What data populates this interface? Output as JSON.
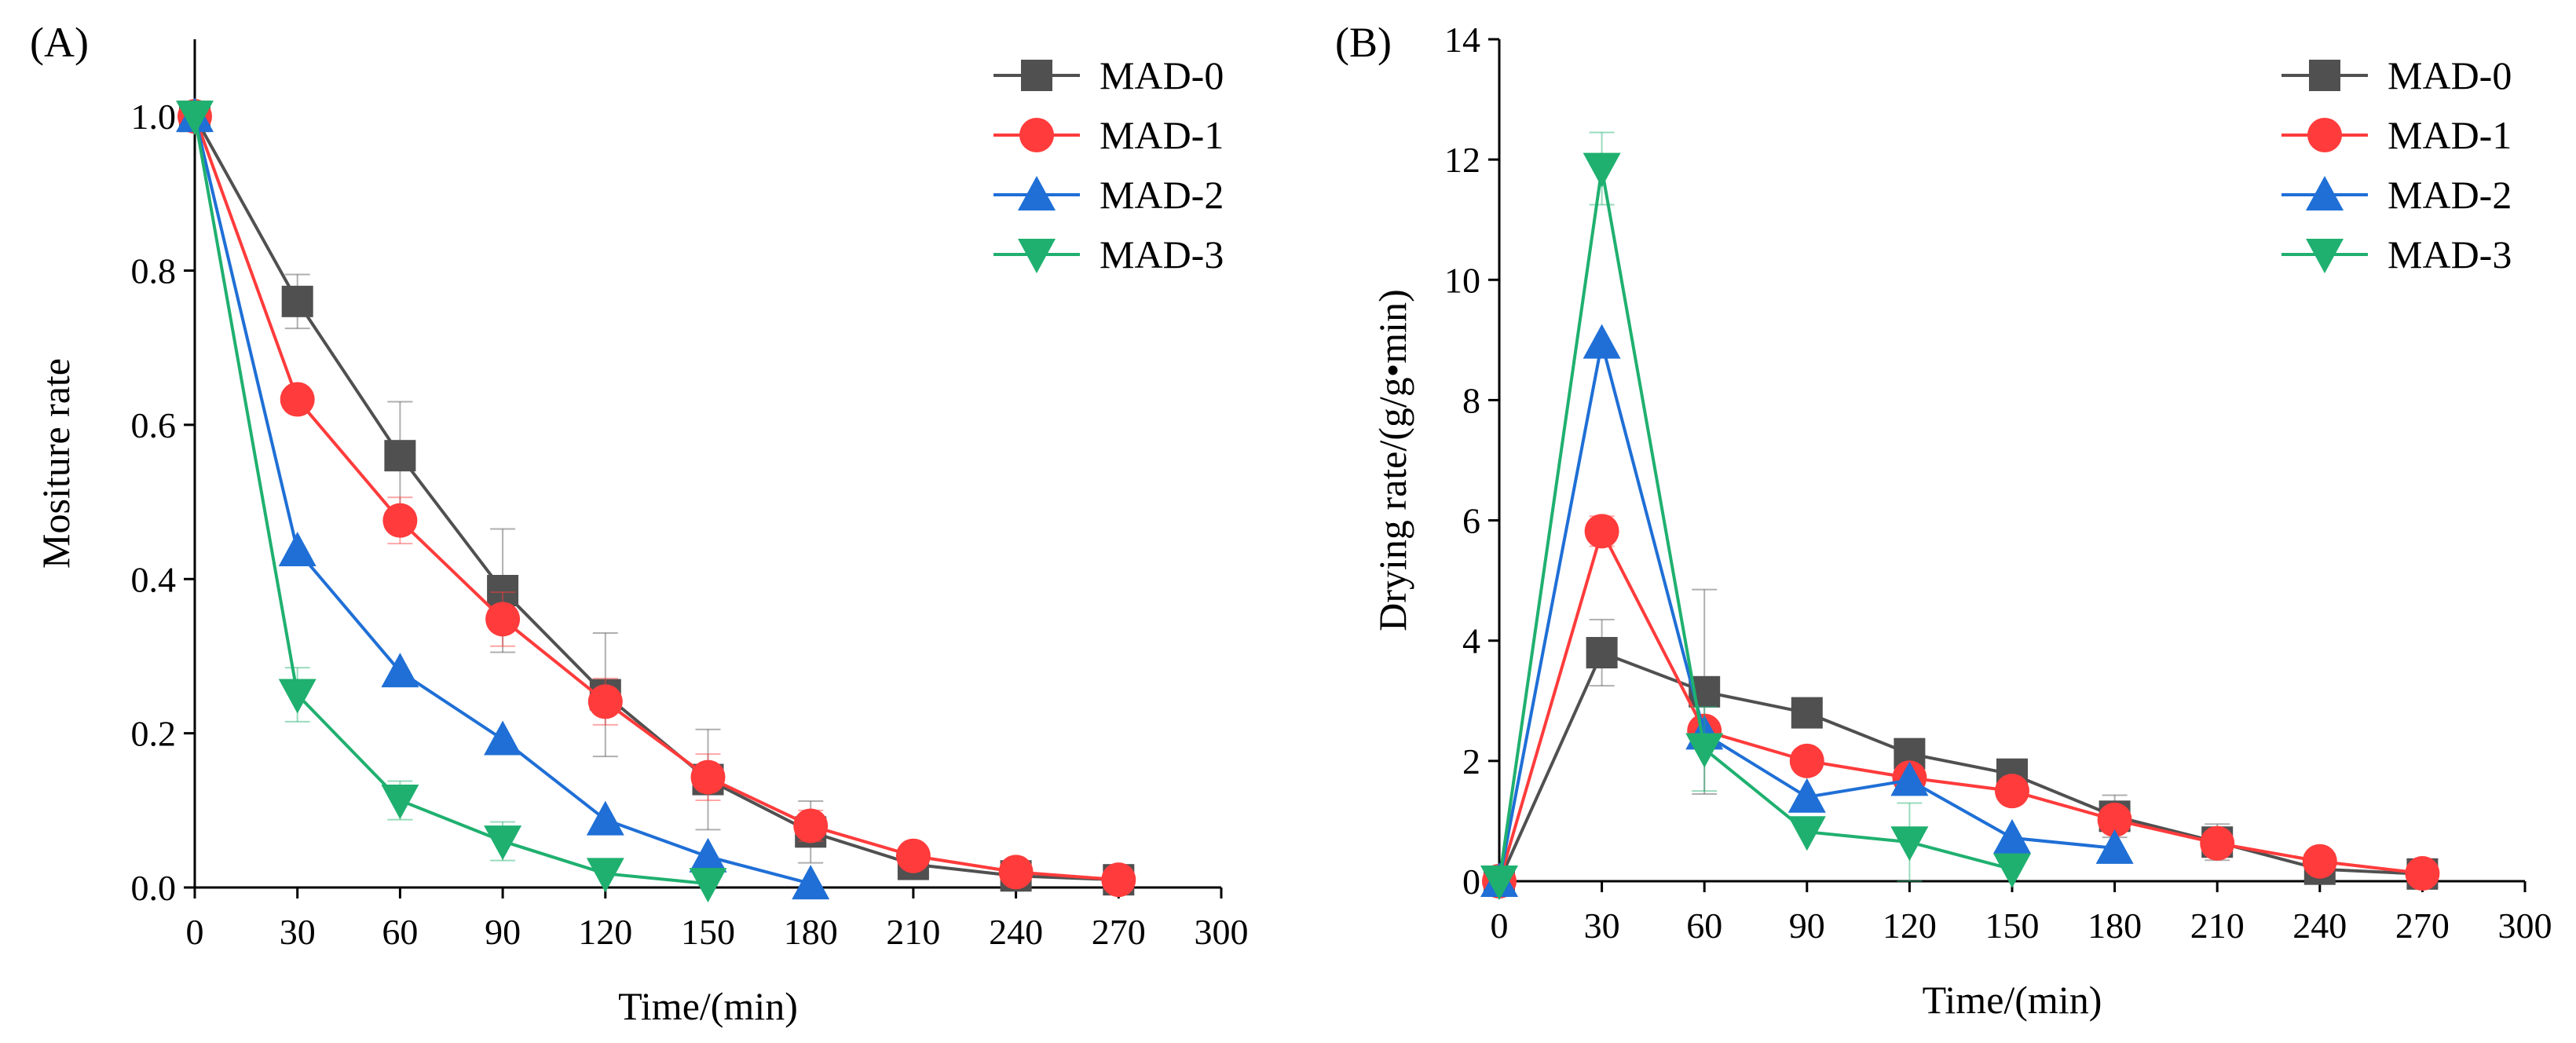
{
  "chart_data": [
    {
      "type": "line",
      "panel_label": "(A)",
      "xlabel": "Time/(min)",
      "ylabel": "Mositure rate",
      "xlim": [
        0,
        300
      ],
      "ylim": [
        0,
        1.1
      ],
      "x_ticks": [
        0,
        30,
        60,
        90,
        120,
        150,
        180,
        210,
        240,
        270,
        300
      ],
      "x_tick_labels": [
        "0",
        "30",
        "60",
        "90",
        "120",
        "150",
        "180",
        "210",
        "240",
        "270",
        "300"
      ],
      "y_ticks": [
        0,
        0.2,
        0.4,
        0.6,
        0.8,
        1.0
      ],
      "y_tick_labels": [
        "0.0",
        "0.2",
        "0.4",
        "0.6",
        "0.8",
        "1.0"
      ],
      "grid": false,
      "legend_position": "top-right",
      "series": [
        {
          "name": "MAD-0",
          "color": "#505050",
          "marker": "square",
          "x": [
            0,
            30,
            60,
            90,
            120,
            150,
            180,
            210,
            240,
            270
          ],
          "y": [
            1.0,
            0.76,
            0.56,
            0.385,
            0.25,
            0.14,
            0.072,
            0.03,
            0.015,
            0.01
          ],
          "err": [
            0,
            0.035,
            0.07,
            0.08,
            0.08,
            0.065,
            0.04,
            0,
            0,
            0
          ]
        },
        {
          "name": "MAD-1",
          "color": "#ff3b3b",
          "marker": "circle",
          "x": [
            0,
            30,
            60,
            90,
            120,
            150,
            180,
            210,
            240,
            270
          ],
          "y": [
            1.0,
            0.633,
            0.476,
            0.348,
            0.241,
            0.143,
            0.08,
            0.041,
            0.02,
            0.01
          ],
          "err": [
            0,
            0,
            0.03,
            0.035,
            0.03,
            0.03,
            0.02,
            0,
            0,
            0
          ]
        },
        {
          "name": "MAD-2",
          "color": "#1f6fd6",
          "marker": "triangle-up",
          "x": [
            0,
            30,
            60,
            90,
            120,
            150,
            180
          ],
          "y": [
            1.0,
            0.437,
            0.28,
            0.192,
            0.088,
            0.04,
            0.005
          ],
          "err": [
            0,
            0,
            0,
            0,
            0,
            0,
            0
          ]
        },
        {
          "name": "MAD-3",
          "color": "#1fb06f",
          "marker": "triangle-down",
          "x": [
            0,
            30,
            60,
            90,
            120,
            150
          ],
          "y": [
            1.0,
            0.25,
            0.113,
            0.06,
            0.018,
            0.005
          ],
          "err": [
            0,
            0.035,
            0.025,
            0.025,
            0,
            0
          ]
        }
      ]
    },
    {
      "type": "line",
      "panel_label": "(B)",
      "xlabel": "Time/(min)",
      "ylabel": "Drying rate/(g/g•min)",
      "xlim": [
        0,
        300
      ],
      "ylim": [
        0,
        14
      ],
      "x_ticks": [
        0,
        30,
        60,
        90,
        120,
        150,
        180,
        210,
        240,
        270,
        300
      ],
      "x_tick_labels": [
        "0",
        "30",
        "60",
        "90",
        "120",
        "150",
        "180",
        "210",
        "240",
        "270",
        "300"
      ],
      "y_ticks": [
        0,
        2,
        4,
        6,
        8,
        10,
        12,
        14
      ],
      "y_tick_labels": [
        "0",
        "2",
        "4",
        "6",
        "8",
        "10",
        "12",
        "14"
      ],
      "grid": false,
      "legend_position": "top-right",
      "series": [
        {
          "name": "MAD-0",
          "color": "#505050",
          "marker": "square",
          "x": [
            0,
            30,
            60,
            90,
            120,
            150,
            180,
            210,
            240,
            270
          ],
          "y": [
            0,
            3.8,
            3.15,
            2.8,
            2.12,
            1.78,
            1.08,
            0.65,
            0.2,
            0.12
          ],
          "err": [
            0,
            0.55,
            1.7,
            0,
            0,
            0,
            0.35,
            0.3,
            0,
            0
          ]
        },
        {
          "name": "MAD-1",
          "color": "#ff3b3b",
          "marker": "circle",
          "x": [
            0,
            30,
            60,
            90,
            120,
            150,
            180,
            210,
            240,
            270
          ],
          "y": [
            0,
            5.82,
            2.5,
            2.0,
            1.72,
            1.5,
            1.02,
            0.63,
            0.33,
            0.13
          ],
          "err": [
            0,
            0.25,
            0,
            0,
            0,
            0,
            0,
            0,
            0,
            0
          ]
        },
        {
          "name": "MAD-2",
          "color": "#1f6fd6",
          "marker": "triangle-up",
          "x": [
            0,
            30,
            60,
            90,
            120,
            150,
            180
          ],
          "y": [
            0,
            8.95,
            2.45,
            1.4,
            1.68,
            0.72,
            0.55
          ],
          "err": [
            0,
            0,
            0,
            0,
            0,
            0,
            0
          ]
        },
        {
          "name": "MAD-3",
          "color": "#1fb06f",
          "marker": "triangle-down",
          "x": [
            0,
            30,
            60,
            90,
            120,
            150
          ],
          "y": [
            0,
            11.85,
            2.2,
            0.82,
            0.65,
            0.2
          ],
          "err": [
            0,
            0.6,
            0.7,
            0,
            0.65,
            0
          ]
        }
      ]
    }
  ]
}
